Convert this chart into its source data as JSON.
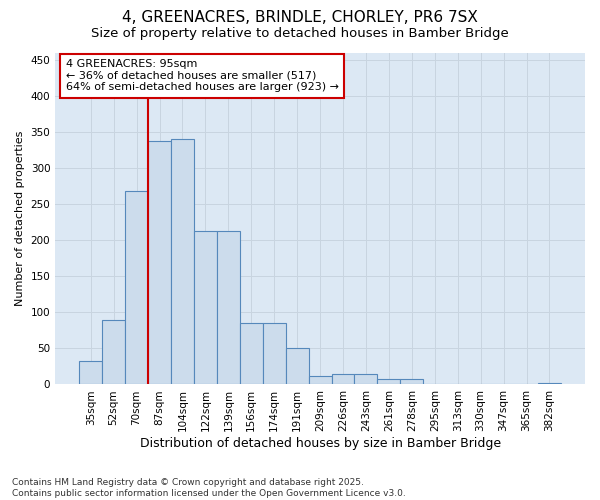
{
  "title1": "4, GREENACRES, BRINDLE, CHORLEY, PR6 7SX",
  "title2": "Size of property relative to detached houses in Bamber Bridge",
  "xlabel": "Distribution of detached houses by size in Bamber Bridge",
  "ylabel": "Number of detached properties",
  "categories": [
    "35sqm",
    "52sqm",
    "70sqm",
    "87sqm",
    "104sqm",
    "122sqm",
    "139sqm",
    "156sqm",
    "174sqm",
    "191sqm",
    "209sqm",
    "226sqm",
    "243sqm",
    "261sqm",
    "278sqm",
    "295sqm",
    "313sqm",
    "330sqm",
    "347sqm",
    "365sqm",
    "382sqm"
  ],
  "values": [
    33,
    90,
    268,
    337,
    340,
    212,
    212,
    85,
    85,
    51,
    12,
    15,
    15,
    7,
    8,
    0,
    0,
    0,
    0,
    0,
    2
  ],
  "bar_color": "#ccdcec",
  "bar_edge_color": "#5588bb",
  "grid_color": "#c8d4e0",
  "plot_bg_color": "#dce8f4",
  "fig_bg_color": "#ffffff",
  "red_line_x": 2.5,
  "annotation_text": "4 GREENACRES: 95sqm\n← 36% of detached houses are smaller (517)\n64% of semi-detached houses are larger (923) →",
  "annotation_box_color": "#ffffff",
  "annotation_box_edge": "#cc0000",
  "ylim": [
    0,
    460
  ],
  "yticks": [
    0,
    50,
    100,
    150,
    200,
    250,
    300,
    350,
    400,
    450
  ],
  "footer": "Contains HM Land Registry data © Crown copyright and database right 2025.\nContains public sector information licensed under the Open Government Licence v3.0.",
  "title1_fontsize": 11,
  "title2_fontsize": 9.5,
  "xlabel_fontsize": 9,
  "ylabel_fontsize": 8,
  "tick_fontsize": 7.5,
  "footer_fontsize": 6.5,
  "annot_fontsize": 8
}
